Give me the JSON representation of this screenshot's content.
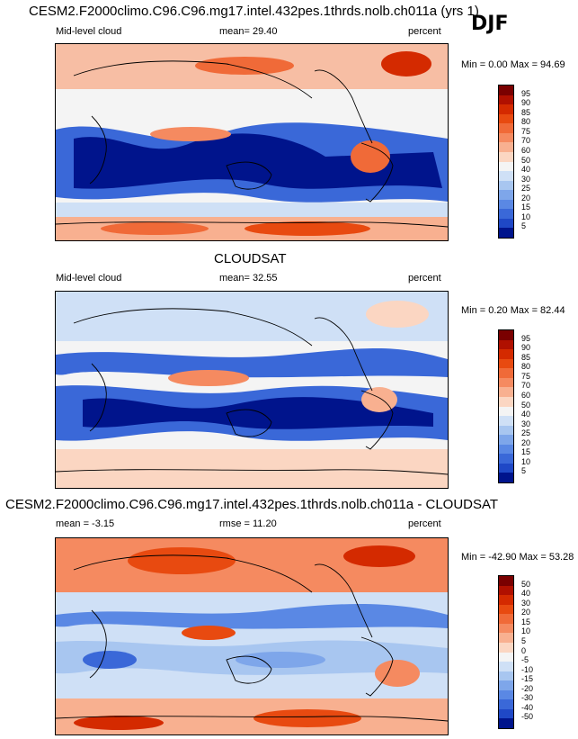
{
  "season": "DJF",
  "panels": [
    {
      "id": "model",
      "title": "CESM2.F2000climo.C96.C96.mg17.intel.432pes.1thrds.nolb.ch011a (yrs 1)",
      "left_label": "Mid-level cloud",
      "stat1": "mean=  29.40",
      "stat2": "",
      "units": "percent",
      "minmax": "Min =   0.00 Max =  94.69",
      "colorbar": {
        "labels": [
          "95",
          "90",
          "85",
          "80",
          "75",
          "70",
          "60",
          "50",
          "40",
          "30",
          "25",
          "20",
          "15",
          "10",
          "5"
        ],
        "colors": [
          "#7a0000",
          "#b01000",
          "#d42a00",
          "#e84a10",
          "#f06a38",
          "#f58a60",
          "#f8b090",
          "#fbd6c2",
          "#f4f4f4",
          "#cfe0f6",
          "#a8c6f0",
          "#7ea6ea",
          "#5a88e4",
          "#3a68d8",
          "#1f48c6",
          "#00148c"
        ]
      }
    },
    {
      "id": "obs",
      "title": "CLOUDSAT",
      "left_label": "Mid-level cloud",
      "stat1": "mean=  32.55",
      "stat2": "",
      "units": "percent",
      "minmax": "Min =   0.20 Max =  82.44",
      "colorbar": {
        "labels": [
          "95",
          "90",
          "85",
          "80",
          "75",
          "70",
          "60",
          "50",
          "40",
          "30",
          "25",
          "20",
          "15",
          "10",
          "5"
        ],
        "colors": [
          "#7a0000",
          "#b01000",
          "#d42a00",
          "#e84a10",
          "#f06a38",
          "#f58a60",
          "#f8b090",
          "#fbd6c2",
          "#f4f4f4",
          "#cfe0f6",
          "#a8c6f0",
          "#7ea6ea",
          "#5a88e4",
          "#3a68d8",
          "#1f48c6",
          "#00148c"
        ]
      }
    },
    {
      "id": "diff",
      "title": "CESM2.F2000climo.C96.C96.mg17.intel.432pes.1thrds.nolb.ch011a - CLOUDSAT",
      "left_label": "mean =  -3.15",
      "stat1": "rmse =  11.20",
      "stat2": "",
      "units": "percent",
      "minmax": "Min = -42.90 Max =  53.28",
      "colorbar": {
        "labels": [
          "50",
          "40",
          "30",
          "20",
          "15",
          "10",
          "5",
          "0",
          "-5",
          "-10",
          "-15",
          "-20",
          "-30",
          "-40",
          "-50"
        ],
        "colors": [
          "#7a0000",
          "#b01000",
          "#d42a00",
          "#e84a10",
          "#f06a38",
          "#f58a60",
          "#f8b090",
          "#fbd6c2",
          "#f4f4f4",
          "#cfe0f6",
          "#a8c6f0",
          "#7ea6ea",
          "#5a88e4",
          "#3a68d8",
          "#1f48c6",
          "#00148c"
        ]
      }
    }
  ]
}
